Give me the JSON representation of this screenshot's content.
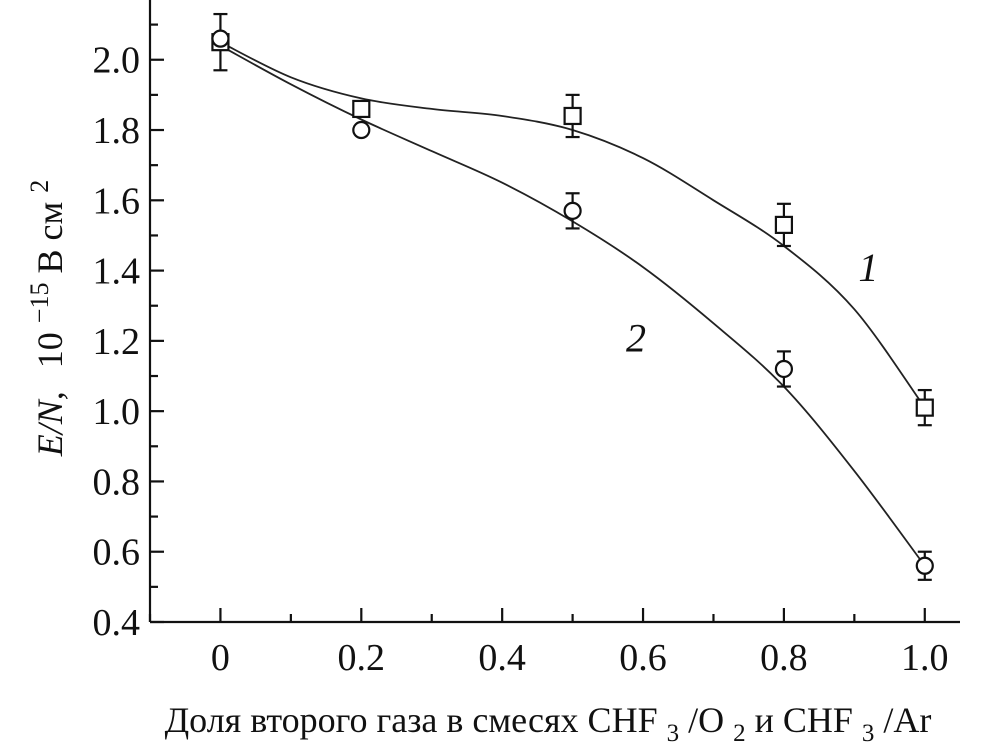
{
  "chart_data": {
    "type": "line",
    "xlabel": {
      "main": "Доля второго газа в смесях CHF",
      "sub1": "3",
      "mid1": "/O",
      "sub2": "2",
      "mid2": " и CHF",
      "sub3": "3",
      "end": "/Ar"
    },
    "ylabel": {
      "quantity": "E/N,",
      "unit_prefix": "10",
      "exponent": "−15",
      "unit": " В см",
      "unit_exponent": "2"
    },
    "xlim": [
      -0.1,
      1.05
    ],
    "ylim": [
      0.4,
      2.17
    ],
    "x_ticks": [
      {
        "value": 0,
        "label": "0"
      },
      {
        "value": 0.2,
        "label": "0.2"
      },
      {
        "value": 0.4,
        "label": "0.4"
      },
      {
        "value": 0.6,
        "label": "0.6"
      },
      {
        "value": 0.8,
        "label": "0.8"
      },
      {
        "value": 1.0,
        "label": "1.0"
      }
    ],
    "y_ticks": [
      {
        "value": 0.4,
        "label": "0.4"
      },
      {
        "value": 0.6,
        "label": "0.6"
      },
      {
        "value": 0.8,
        "label": "0.8"
      },
      {
        "value": 1.0,
        "label": "1.0"
      },
      {
        "value": 1.2,
        "label": "1.2"
      },
      {
        "value": 1.4,
        "label": "1.4"
      },
      {
        "value": 1.6,
        "label": "1.6"
      },
      {
        "value": 1.8,
        "label": "1.8"
      },
      {
        "value": 2.0,
        "label": "2.0"
      }
    ],
    "grid": false,
    "series": [
      {
        "name": "1",
        "marker": "square",
        "points": [
          {
            "x": 0.0,
            "y": 2.05,
            "err": 0.08
          },
          {
            "x": 0.2,
            "y": 1.86,
            "err": 0.0
          },
          {
            "x": 0.5,
            "y": 1.84,
            "err": 0.06
          },
          {
            "x": 0.8,
            "y": 1.53,
            "err": 0.06
          },
          {
            "x": 1.0,
            "y": 1.01,
            "err": 0.05
          }
        ],
        "curve": [
          {
            "x": 0.0,
            "y": 2.05
          },
          {
            "x": 0.1,
            "y": 1.95
          },
          {
            "x": 0.2,
            "y": 1.89
          },
          {
            "x": 0.3,
            "y": 1.86
          },
          {
            "x": 0.4,
            "y": 1.84
          },
          {
            "x": 0.5,
            "y": 1.8
          },
          {
            "x": 0.6,
            "y": 1.72
          },
          {
            "x": 0.7,
            "y": 1.6
          },
          {
            "x": 0.8,
            "y": 1.47
          },
          {
            "x": 0.9,
            "y": 1.29
          },
          {
            "x": 1.0,
            "y": 1.01
          }
        ]
      },
      {
        "name": "2",
        "marker": "circle",
        "points": [
          {
            "x": 0.0,
            "y": 2.06,
            "err": 0.0
          },
          {
            "x": 0.2,
            "y": 1.8,
            "err": 0.0
          },
          {
            "x": 0.5,
            "y": 1.57,
            "err": 0.05
          },
          {
            "x": 0.8,
            "y": 1.12,
            "err": 0.05
          },
          {
            "x": 1.0,
            "y": 0.56,
            "err": 0.04
          }
        ],
        "curve": [
          {
            "x": 0.0,
            "y": 2.04
          },
          {
            "x": 0.1,
            "y": 1.93
          },
          {
            "x": 0.2,
            "y": 1.83
          },
          {
            "x": 0.3,
            "y": 1.74
          },
          {
            "x": 0.4,
            "y": 1.65
          },
          {
            "x": 0.5,
            "y": 1.54
          },
          {
            "x": 0.6,
            "y": 1.41
          },
          {
            "x": 0.7,
            "y": 1.25
          },
          {
            "x": 0.8,
            "y": 1.07
          },
          {
            "x": 0.9,
            "y": 0.83
          },
          {
            "x": 1.0,
            "y": 0.56
          }
        ]
      }
    ],
    "annotations": [
      {
        "text": "1",
        "x": 0.92,
        "y": 1.37
      },
      {
        "text": "2",
        "x": 0.59,
        "y": 1.17
      }
    ]
  }
}
